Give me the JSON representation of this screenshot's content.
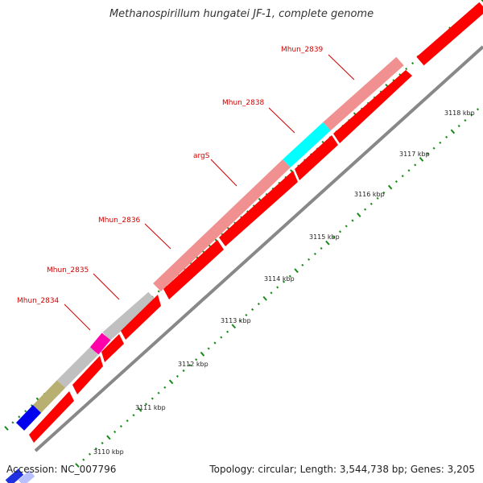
{
  "title": "Methanospirillum hungatei JF-1, complete genome",
  "footer": {
    "accession": "Accession: NC_007796",
    "topology": "Topology: circular; Length: 3,544,738 bp; Genes: 3,205"
  },
  "colors": {
    "background": "#ffffff",
    "forward_gene": "#f09090",
    "reverse_gene": "#ff0000",
    "label": "#d40000",
    "backbone": "#888888",
    "tick_minor": "#1a8a1a",
    "tick_major": "#1a8a1a"
  },
  "gene_labels": [
    {
      "name": "Mhun_2839"
    },
    {
      "name": "Mhun_2838"
    },
    {
      "name": "argS"
    },
    {
      "name": "Mhun_2836"
    },
    {
      "name": "Mhun_2835"
    },
    {
      "name": "Mhun_2834"
    }
  ],
  "ruler_labels": [
    "3110 kbp",
    "3111 kbp",
    "3112 kbp",
    "3113 kbp",
    "3114 kbp",
    "3115 kbp",
    "3116 kbp",
    "3117 kbp",
    "3118 kbp"
  ]
}
